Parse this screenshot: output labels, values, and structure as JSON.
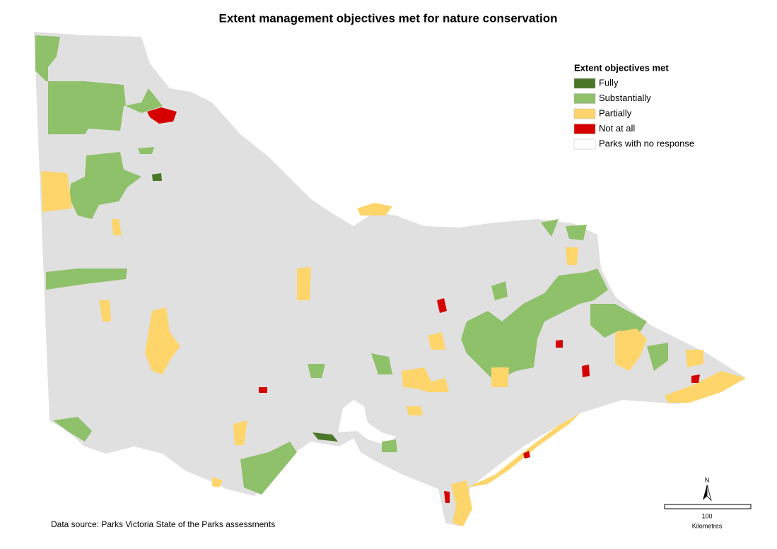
{
  "title": "Extent management objectives met for nature conservation",
  "legend": {
    "title": "Extent objectives met",
    "items": [
      {
        "label": "Fully",
        "color": "#4a7729"
      },
      {
        "label": "Substantially",
        "color": "#8fc06a"
      },
      {
        "label": "Partially",
        "color": "#fdd56b"
      },
      {
        "label": "Not at all",
        "color": "#d60000"
      },
      {
        "label": "Parks with no response",
        "color": "#ffffff"
      }
    ]
  },
  "source": "Data source: Parks Victoria State of the Parks assessments",
  "north_arrow": {
    "label": "N"
  },
  "scale_bar": {
    "label": 100,
    "unit": "Kilometres"
  }
}
